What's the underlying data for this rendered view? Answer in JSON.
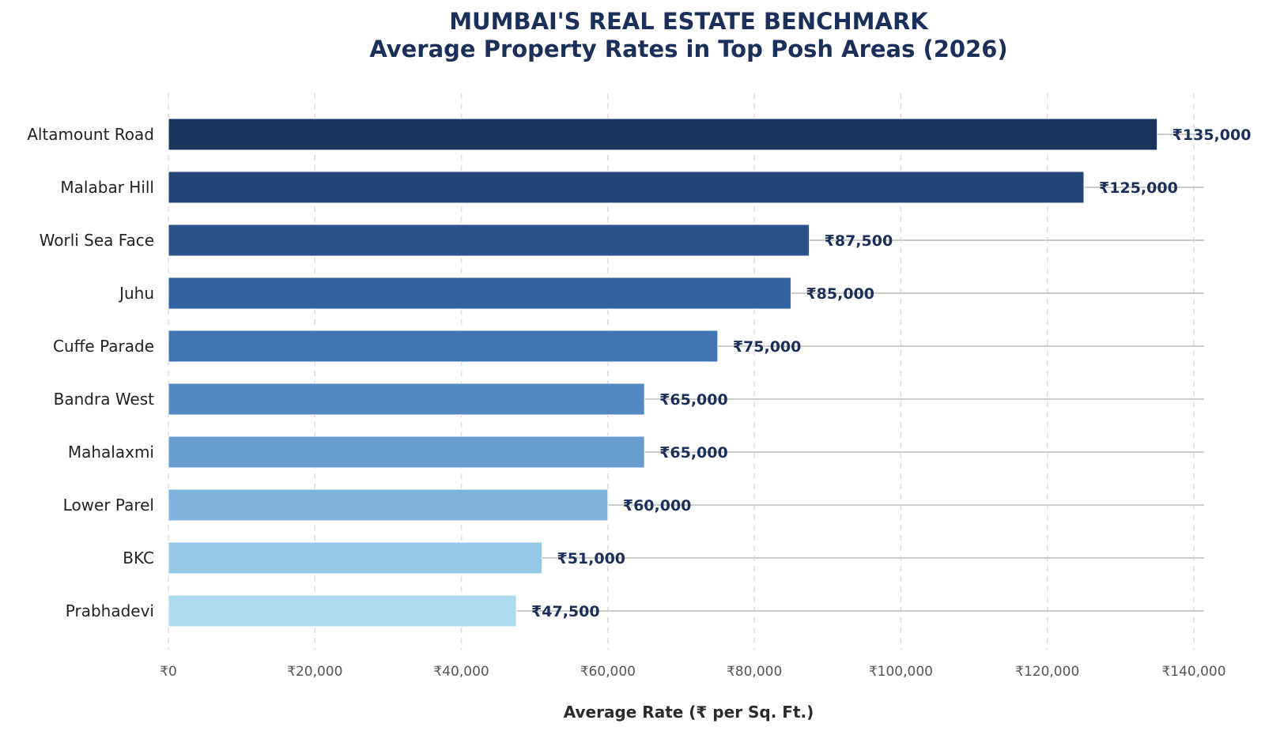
{
  "chart_data": {
    "type": "bar",
    "orientation": "horizontal",
    "title": "MUMBAI'S REAL ESTATE BENCHMARK",
    "subtitle": "Average Property Rates in Top Posh Areas (2026)",
    "xlabel": "Average Rate (₹ per Sq. Ft.)",
    "ylabel": "",
    "categories": [
      "Altamount Road",
      "Malabar Hill",
      "Worli Sea Face",
      "Juhu",
      "Cuffe Parade",
      "Bandra West",
      "Mahalaxmi",
      "Lower Parel",
      "BKC",
      "Prabhadevi"
    ],
    "values": [
      135000,
      125000,
      87500,
      85000,
      75000,
      65000,
      65000,
      60000,
      51000,
      47500
    ],
    "value_labels": [
      "₹135,000",
      "₹125,000",
      "₹87,500",
      "₹85,000",
      "₹75,000",
      "₹65,000",
      "₹65,000",
      "₹60,000",
      "₹51,000",
      "₹47,500"
    ],
    "bar_colors": [
      "#1c355e",
      "#234577",
      "#2b5289",
      "#3262a1",
      "#4174b3",
      "#5389c2",
      "#689ecf",
      "#7fb3de",
      "#96c8e8",
      "#aedaee"
    ],
    "xticks": [
      0,
      20000,
      40000,
      60000,
      80000,
      100000,
      120000,
      140000
    ],
    "xtick_labels": [
      "₹0",
      "₹20,000",
      "₹40,000",
      "₹60,000",
      "₹80,000",
      "₹100,000",
      "₹120,000",
      "₹140,000"
    ],
    "xlim": [
      0,
      142000
    ],
    "grid": "vertical dashed",
    "legend": "none"
  }
}
